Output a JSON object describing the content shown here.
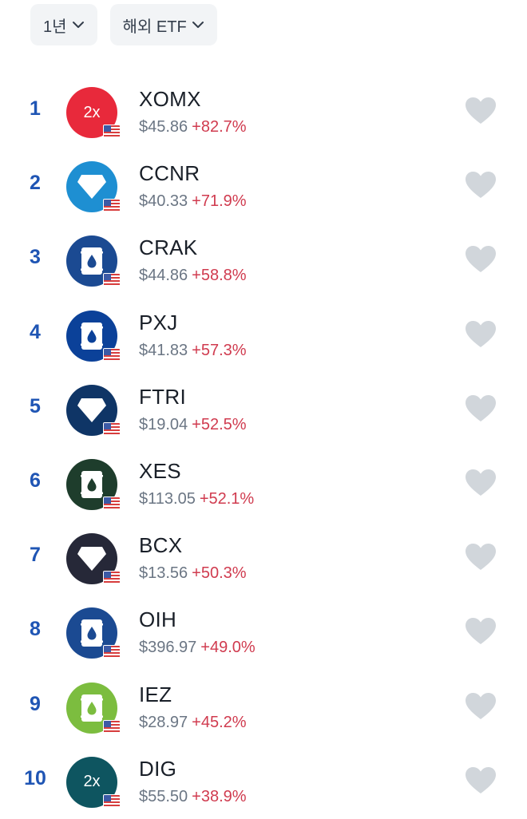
{
  "filters": {
    "period_label": "1년",
    "category_label": "해외 ETF"
  },
  "items": [
    {
      "rank": "1",
      "ticker": "XOMX",
      "price": "$45.86",
      "change": "+82.7%",
      "logo_color": "#e8293b",
      "logo_icon": "2x-text-icon",
      "logo_text": "2x"
    },
    {
      "rank": "2",
      "ticker": "CCNR",
      "price": "$40.33",
      "change": "+71.9%",
      "logo_color": "#1e8fd2",
      "logo_icon": "diamond-icon",
      "logo_text": ""
    },
    {
      "rank": "3",
      "ticker": "CRAK",
      "price": "$44.86",
      "change": "+58.8%",
      "logo_color": "#1b4a92",
      "logo_icon": "oil-barrel-icon",
      "logo_text": ""
    },
    {
      "rank": "4",
      "ticker": "PXJ",
      "price": "$41.83",
      "change": "+57.3%",
      "logo_color": "#0b4199",
      "logo_icon": "oil-barrel-icon",
      "logo_text": ""
    },
    {
      "rank": "5",
      "ticker": "FTRI",
      "price": "$19.04",
      "change": "+52.5%",
      "logo_color": "#0f3566",
      "logo_icon": "diamond-icon",
      "logo_text": ""
    },
    {
      "rank": "6",
      "ticker": "XES",
      "price": "$113.05",
      "change": "+52.1%",
      "logo_color": "#1e3d2c",
      "logo_icon": "oil-barrel-icon",
      "logo_text": ""
    },
    {
      "rank": "7",
      "ticker": "BCX",
      "price": "$13.56",
      "change": "+50.3%",
      "logo_color": "#262838",
      "logo_icon": "diamond-icon",
      "logo_text": ""
    },
    {
      "rank": "8",
      "ticker": "OIH",
      "price": "$396.97",
      "change": "+49.0%",
      "logo_color": "#1b4a92",
      "logo_icon": "oil-barrel-icon",
      "logo_text": ""
    },
    {
      "rank": "9",
      "ticker": "IEZ",
      "price": "$28.97",
      "change": "+45.2%",
      "logo_color": "#7cbd3f",
      "logo_icon": "oil-barrel-icon",
      "logo_text": ""
    },
    {
      "rank": "10",
      "ticker": "DIG",
      "price": "$55.50",
      "change": "+38.9%",
      "logo_color": "#0e5560",
      "logo_icon": "2x-text-icon",
      "logo_text": "2x"
    }
  ]
}
